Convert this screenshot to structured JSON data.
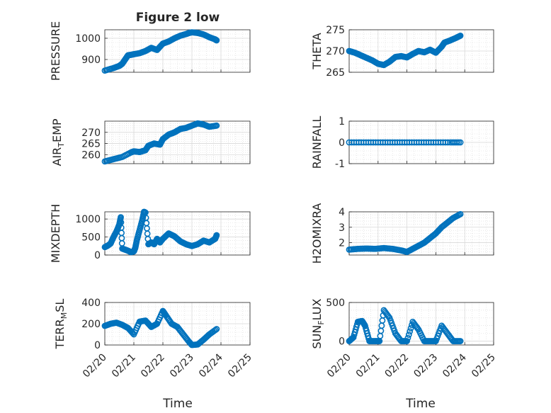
{
  "title": "Figure 2 low",
  "time_axis": {
    "label": "Time",
    "ticks": [
      "02/20",
      "02/21",
      "02/22",
      "02/23",
      "02/24",
      "02/25"
    ],
    "range_days": [
      0,
      5
    ]
  },
  "colors": {
    "marker": "#0072BD",
    "grid": "#d8d8d8",
    "axis": "#262626"
  },
  "chart_data": [
    {
      "type": "scatter",
      "position": "row1-left",
      "ylabel": "PRESSURE",
      "ylim": [
        840,
        1040
      ],
      "yticks": [
        900,
        1000
      ],
      "ytick_labels": [
        "900",
        "1000"
      ],
      "series_x_days": [
        0,
        0.3,
        0.5,
        0.6,
        0.7,
        0.8,
        0.9,
        1.0,
        1.2,
        1.4,
        1.6,
        1.8,
        2.0,
        2.2,
        2.4,
        2.6,
        2.8,
        2.9,
        3.0,
        3.2,
        3.4,
        3.6,
        3.8,
        3.85
      ],
      "series_y": [
        848,
        860,
        870,
        880,
        900,
        920,
        922,
        925,
        930,
        940,
        955,
        945,
        975,
        985,
        1000,
        1012,
        1020,
        1025,
        1028,
        1025,
        1018,
        1005,
        995,
        990
      ]
    },
    {
      "type": "scatter",
      "position": "row1-right",
      "ylabel": "THETA",
      "ylim": [
        265,
        275
      ],
      "yticks": [
        265,
        270,
        275
      ],
      "ytick_labels": [
        "265",
        "270",
        "275"
      ],
      "series_x_days": [
        0,
        0.2,
        0.4,
        0.6,
        0.8,
        1.0,
        1.2,
        1.4,
        1.6,
        1.8,
        2.0,
        2.2,
        2.4,
        2.6,
        2.8,
        3.0,
        3.2,
        3.3,
        3.5,
        3.7,
        3.85
      ],
      "series_y": [
        270,
        269.6,
        269,
        268.4,
        267.8,
        267,
        266.7,
        267.5,
        268.6,
        268.8,
        268.5,
        269.3,
        270,
        269.7,
        270.3,
        269.6,
        271,
        272,
        272.5,
        273.1,
        273.6
      ]
    },
    {
      "type": "scatter",
      "position": "row2-left",
      "ylabel": "AIR_TEMP",
      "ylim": [
        256,
        275
      ],
      "yticks": [
        260,
        265,
        270
      ],
      "ytick_labels": [
        "260",
        "265",
        "270"
      ],
      "series_x_days": [
        0,
        0.3,
        0.6,
        0.9,
        1.0,
        1.2,
        1.4,
        1.5,
        1.7,
        1.9,
        2.0,
        2.2,
        2.4,
        2.6,
        2.8,
        3.0,
        3.2,
        3.4,
        3.6,
        3.85
      ],
      "series_y": [
        257,
        258,
        259,
        261,
        261.5,
        261.2,
        262,
        264,
        265,
        264.5,
        267,
        269,
        270,
        271.5,
        272,
        273,
        274,
        273.5,
        272.5,
        273
      ]
    },
    {
      "type": "scatter",
      "position": "row2-right",
      "ylabel": "RAINFALL",
      "ylim": [
        -1,
        1
      ],
      "yticks": [
        -1,
        0,
        1
      ],
      "ytick_labels": [
        "-1",
        "0",
        "1"
      ],
      "series_x_days": [
        0,
        0.5,
        1.0,
        1.5,
        2.0,
        2.5,
        3.0,
        3.5,
        3.85
      ],
      "series_y": [
        0,
        0,
        0,
        0,
        0,
        0,
        0,
        0,
        0
      ]
    },
    {
      "type": "scatter",
      "position": "row3-left",
      "ylabel": "MIXDEPTH",
      "ylim": [
        0,
        1200
      ],
      "yticks": [
        0,
        500,
        1000
      ],
      "ytick_labels": [
        "0",
        "500",
        "1000"
      ],
      "series_x_days": [
        0,
        0.1,
        0.2,
        0.3,
        0.4,
        0.5,
        0.55,
        0.6,
        0.7,
        0.8,
        0.9,
        1.0,
        1.05,
        1.1,
        1.2,
        1.3,
        1.35,
        1.4,
        1.5,
        1.6,
        1.7,
        1.8,
        1.9,
        2.0,
        2.2,
        2.4,
        2.6,
        2.8,
        3.0,
        3.2,
        3.4,
        3.6,
        3.8,
        3.85
      ],
      "series_y": [
        220,
        260,
        320,
        500,
        650,
        850,
        1050,
        180,
        150,
        120,
        80,
        100,
        200,
        400,
        700,
        1000,
        1200,
        1180,
        300,
        350,
        300,
        450,
        350,
        450,
        600,
        520,
        380,
        300,
        250,
        300,
        400,
        350,
        450,
        550
      ]
    },
    {
      "type": "scatter",
      "position": "row3-right",
      "ylabel": "H2OMIXRA",
      "ylim": [
        1.2,
        4
      ],
      "yticks": [
        2,
        3,
        4
      ],
      "ytick_labels": [
        "2",
        "3",
        "4"
      ],
      "series_x_days": [
        0,
        0.3,
        0.6,
        0.9,
        1.2,
        1.5,
        1.8,
        2.0,
        2.2,
        2.4,
        2.6,
        2.8,
        3.0,
        3.2,
        3.4,
        3.6,
        3.85
      ],
      "series_y": [
        1.55,
        1.6,
        1.62,
        1.6,
        1.65,
        1.6,
        1.5,
        1.4,
        1.6,
        1.8,
        2.0,
        2.3,
        2.6,
        3.0,
        3.3,
        3.6,
        3.85
      ]
    },
    {
      "type": "scatter",
      "position": "row4-left",
      "ylabel": "TERR_MSL",
      "ylim": [
        0,
        400
      ],
      "yticks": [
        0,
        200,
        400
      ],
      "ytick_labels": [
        "0",
        "200",
        "400"
      ],
      "series_x_days": [
        0,
        0.2,
        0.4,
        0.6,
        0.8,
        1.0,
        1.2,
        1.4,
        1.6,
        1.8,
        2.0,
        2.1,
        2.3,
        2.5,
        2.7,
        2.9,
        3.0,
        3.2,
        3.4,
        3.6,
        3.85
      ],
      "series_y": [
        180,
        200,
        210,
        190,
        160,
        100,
        220,
        230,
        170,
        200,
        320,
        280,
        200,
        170,
        100,
        30,
        0,
        5,
        50,
        100,
        150
      ]
    },
    {
      "type": "scatter",
      "position": "row4-right",
      "ylabel": "SUN_FLUX",
      "ylim": [
        -50,
        500
      ],
      "yticks": [
        0,
        500
      ],
      "ytick_labels": [
        "0",
        "500"
      ],
      "series_x_days": [
        0,
        0.15,
        0.3,
        0.45,
        0.55,
        0.7,
        0.9,
        1.05,
        1.2,
        1.4,
        1.6,
        1.8,
        2.0,
        2.2,
        2.4,
        2.6,
        2.8,
        3.0,
        3.2,
        3.4,
        3.6,
        3.85
      ],
      "series_y": [
        0,
        50,
        250,
        260,
        200,
        0,
        0,
        0,
        400,
        300,
        100,
        0,
        0,
        250,
        150,
        0,
        0,
        0,
        200,
        100,
        0,
        0
      ]
    }
  ]
}
